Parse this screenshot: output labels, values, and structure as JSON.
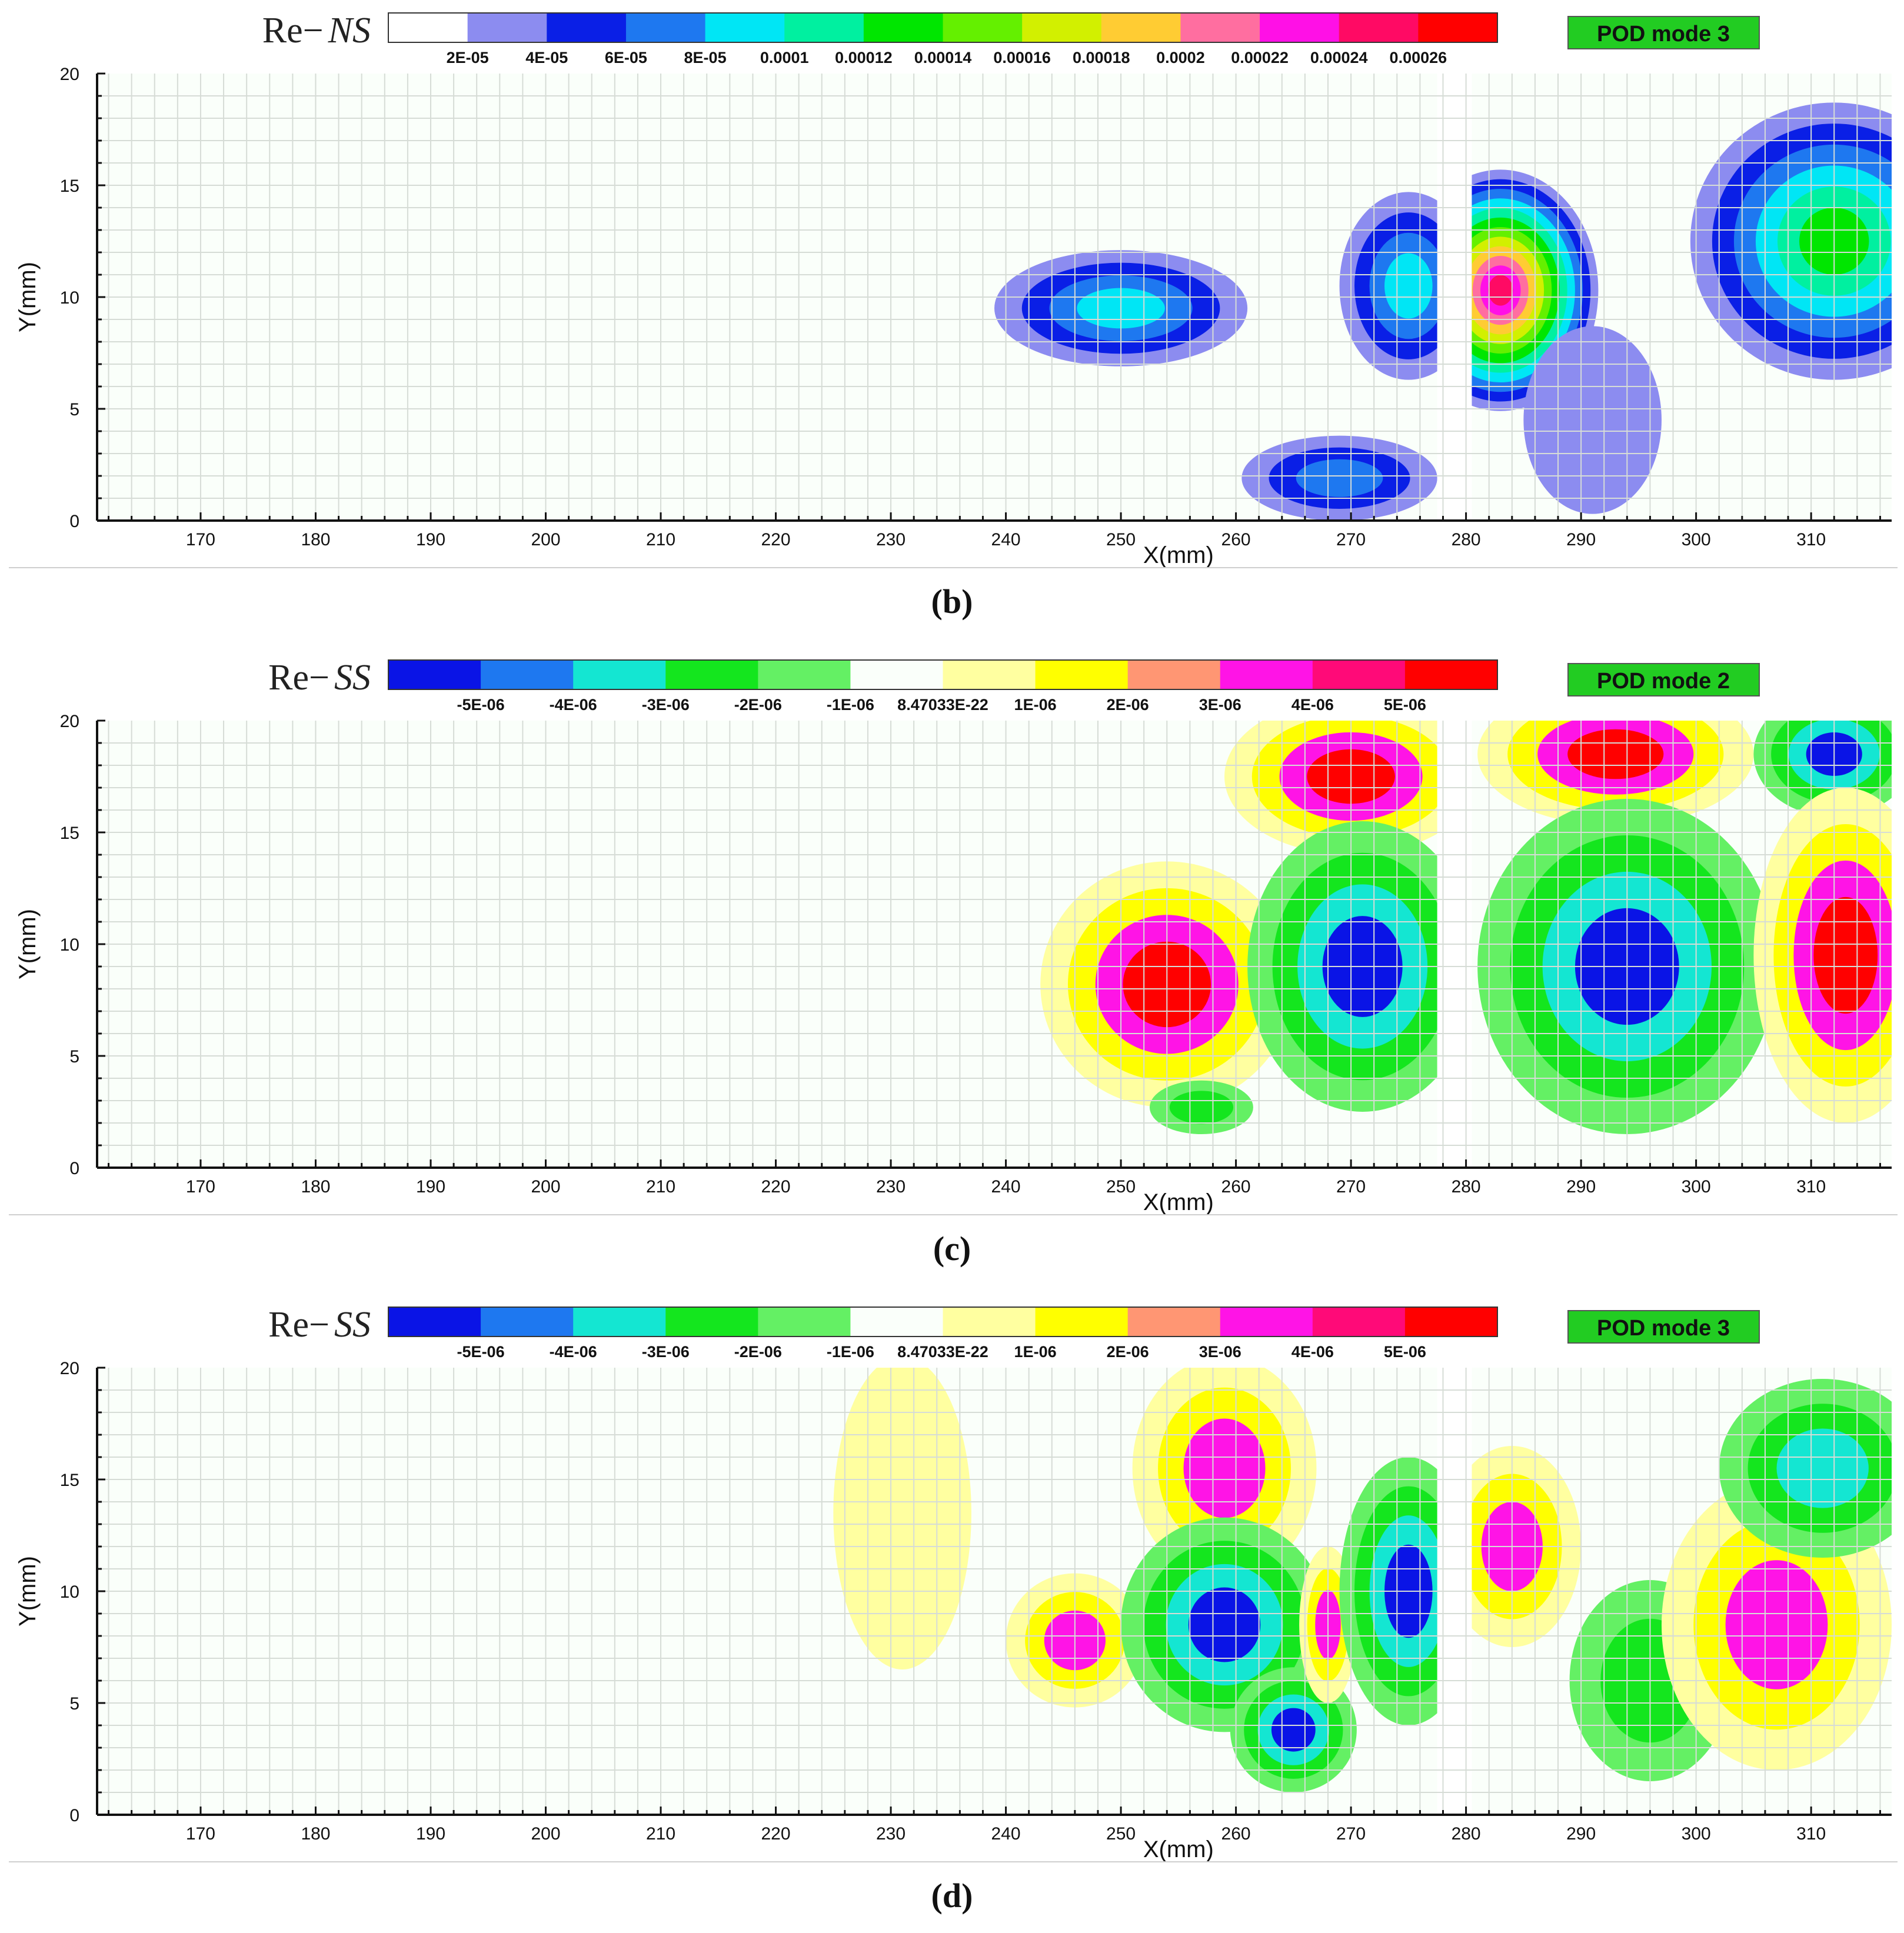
{
  "chart_data": [
    {
      "type": "heatmap",
      "caption": "(b)",
      "title_prefix": "Re−",
      "title_suffix": "NS",
      "badge": "POD mode 3",
      "badge_color": "#22cc22",
      "xlabel": "X(mm)",
      "ylabel": "Y(mm)",
      "xlim": [
        161,
        317
      ],
      "ylim": [
        0,
        20
      ],
      "x_ticks": [
        170,
        180,
        190,
        200,
        210,
        220,
        230,
        240,
        250,
        260,
        270,
        280,
        290,
        300,
        310
      ],
      "y_ticks": [
        0,
        5,
        10,
        15,
        20
      ],
      "colorbar": {
        "colors": [
          "#ffffff",
          "#8c8cf0",
          "#0a1fe6",
          "#1e78f0",
          "#00e6f5",
          "#00f0a0",
          "#00e600",
          "#64f000",
          "#d2f000",
          "#ffcc33",
          "#ff6ea0",
          "#ff10e6",
          "#ff0a64",
          "#ff0000"
        ],
        "labels": [
          "2E-05",
          "4E-05",
          "6E-05",
          "8E-05",
          "0.0001",
          "0.00012",
          "0.00014",
          "0.00016",
          "0.00018",
          "0.0002",
          "0.00022",
          "0.00024",
          "0.00026"
        ]
      },
      "blanked_x": [
        277.5,
        280.5
      ],
      "features": [
        {
          "cx": 250,
          "cy": 9.5,
          "rx": 11,
          "ry": 2.6,
          "levels": [
            1,
            2,
            3,
            4
          ],
          "clip": "none"
        },
        {
          "cx": 269,
          "cy": 1.9,
          "rx": 8.5,
          "ry": 1.9,
          "levels": [
            1,
            2,
            3
          ],
          "clip": "none"
        },
        {
          "cx": 275,
          "cy": 10.5,
          "rx": 6,
          "ry": 4.2,
          "levels": [
            1,
            2,
            3,
            4
          ],
          "clip": "left-of-gap"
        },
        {
          "cx": 283,
          "cy": 10.3,
          "rx": 8.5,
          "ry": 5.4,
          "levels": [
            1,
            2,
            3,
            4,
            5,
            6,
            7,
            8,
            9,
            10,
            11,
            12
          ],
          "clip": "right-of-gap"
        },
        {
          "cx": 291,
          "cy": 4.5,
          "rx": 6,
          "ry": 4.2,
          "levels": [
            1
          ],
          "clip": "right-of-gap"
        },
        {
          "cx": 312,
          "cy": 12.5,
          "rx": 12.5,
          "ry": 6.2,
          "levels": [
            1,
            2,
            3,
            4,
            5,
            6
          ],
          "clip": "none"
        }
      ]
    },
    {
      "type": "heatmap",
      "caption": "(c)",
      "title_prefix": "Re−",
      "title_suffix": "SS",
      "badge": "POD mode 2",
      "badge_color": "#22cc22",
      "xlabel": "X(mm)",
      "ylabel": "Y(mm)",
      "xlim": [
        161,
        317
      ],
      "ylim": [
        0,
        20
      ],
      "x_ticks": [
        170,
        180,
        190,
        200,
        210,
        220,
        230,
        240,
        250,
        260,
        270,
        280,
        290,
        300,
        310
      ],
      "y_ticks": [
        0,
        5,
        10,
        15,
        20
      ],
      "colorbar": {
        "colors": [
          "#0a14e6",
          "#1e78f0",
          "#14e6d2",
          "#14e61e",
          "#64f064",
          "#fafffa",
          "#ffffa0",
          "#ffff00",
          "#ff9673",
          "#ff14e6",
          "#ff0a78",
          "#ff0000"
        ],
        "labels": [
          "-5E-06",
          "-4E-06",
          "-3E-06",
          "-2E-06",
          "-1E-06",
          "8.47033E-22",
          "1E-06",
          "2E-06",
          "3E-06",
          "4E-06",
          "5E-06"
        ]
      },
      "blanked_x": [
        277.5,
        280.5
      ],
      "features": [
        {
          "cx": 254,
          "cy": 8.2,
          "rx": 11,
          "ry": 5.5,
          "levels": [
            6,
            7,
            9,
            11
          ],
          "clip": "none"
        },
        {
          "cx": 257,
          "cy": 2.7,
          "rx": 4.5,
          "ry": 1.2,
          "levels": [
            4,
            3
          ],
          "clip": "none"
        },
        {
          "cx": 270,
          "cy": 17.5,
          "rx": 11,
          "ry": 3.5,
          "levels": [
            6,
            7,
            9,
            11
          ],
          "clip": "left-of-gap"
        },
        {
          "cx": 271,
          "cy": 9,
          "rx": 10,
          "ry": 6.5,
          "levels": [
            4,
            3,
            2,
            0
          ],
          "clip": "left-of-gap"
        },
        {
          "cx": 293,
          "cy": 18.5,
          "rx": 12,
          "ry": 3.2,
          "levels": [
            6,
            7,
            9,
            11
          ],
          "clip": "right-of-gap"
        },
        {
          "cx": 294,
          "cy": 9,
          "rx": 13,
          "ry": 7.5,
          "levels": [
            4,
            3,
            2,
            0
          ],
          "clip": "right-of-gap"
        },
        {
          "cx": 312,
          "cy": 18.5,
          "rx": 7,
          "ry": 2.8,
          "levels": [
            4,
            3,
            2,
            0
          ],
          "clip": "none"
        },
        {
          "cx": 313,
          "cy": 9.5,
          "rx": 8,
          "ry": 7.5,
          "levels": [
            6,
            7,
            9,
            11
          ],
          "clip": "none"
        }
      ]
    },
    {
      "type": "heatmap",
      "caption": "(d)",
      "title_prefix": "Re−",
      "title_suffix": "SS",
      "badge": "POD mode 3",
      "badge_color": "#22cc22",
      "xlabel": "X(mm)",
      "ylabel": "Y(mm)",
      "xlim": [
        161,
        317
      ],
      "ylim": [
        0,
        20
      ],
      "x_ticks": [
        170,
        180,
        190,
        200,
        210,
        220,
        230,
        240,
        250,
        260,
        270,
        280,
        290,
        300,
        310
      ],
      "y_ticks": [
        0,
        5,
        10,
        15,
        20
      ],
      "colorbar": {
        "colors": [
          "#0a14e6",
          "#1e78f0",
          "#14e6d2",
          "#14e61e",
          "#64f064",
          "#fafffa",
          "#ffffa0",
          "#ffff00",
          "#ff9673",
          "#ff14e6",
          "#ff0a78",
          "#ff0000"
        ],
        "labels": [
          "-5E-06",
          "-4E-06",
          "-3E-06",
          "-2E-06",
          "-1E-06",
          "8.47033E-22",
          "1E-06",
          "2E-06",
          "3E-06",
          "4E-06",
          "5E-06"
        ]
      },
      "blanked_x": [
        277.5,
        280.5
      ],
      "features": [
        {
          "cx": 231,
          "cy": 13.5,
          "rx": 6,
          "ry": 7,
          "levels": [
            6
          ],
          "clip": "none"
        },
        {
          "cx": 246,
          "cy": 7.8,
          "rx": 6,
          "ry": 3,
          "levels": [
            6,
            7,
            9
          ],
          "clip": "none"
        },
        {
          "cx": 259,
          "cy": 15.5,
          "rx": 8,
          "ry": 5,
          "levels": [
            6,
            7,
            9
          ],
          "clip": "none"
        },
        {
          "cx": 259,
          "cy": 8.5,
          "rx": 9,
          "ry": 4.8,
          "levels": [
            4,
            3,
            2,
            0
          ],
          "clip": "none"
        },
        {
          "cx": 265,
          "cy": 3.8,
          "rx": 5.5,
          "ry": 2.8,
          "levels": [
            4,
            3,
            2,
            0
          ],
          "clip": "none"
        },
        {
          "cx": 268,
          "cy": 8.5,
          "rx": 2.5,
          "ry": 3.5,
          "levels": [
            6,
            7,
            9
          ],
          "clip": "none"
        },
        {
          "cx": 275,
          "cy": 10,
          "rx": 6,
          "ry": 6,
          "levels": [
            4,
            3,
            2,
            0
          ],
          "clip": "left-of-gap"
        },
        {
          "cx": 284,
          "cy": 12,
          "rx": 6,
          "ry": 4.5,
          "levels": [
            6,
            7,
            9
          ],
          "clip": "right-of-gap"
        },
        {
          "cx": 296,
          "cy": 6,
          "rx": 7,
          "ry": 4.5,
          "levels": [
            4,
            3
          ],
          "clip": "none"
        },
        {
          "cx": 307,
          "cy": 8.5,
          "rx": 10,
          "ry": 6.5,
          "levels": [
            6,
            7,
            9
          ],
          "clip": "none"
        },
        {
          "cx": 311,
          "cy": 15.5,
          "rx": 9,
          "ry": 4,
          "levels": [
            4,
            3,
            2
          ],
          "clip": "none"
        }
      ]
    }
  ]
}
